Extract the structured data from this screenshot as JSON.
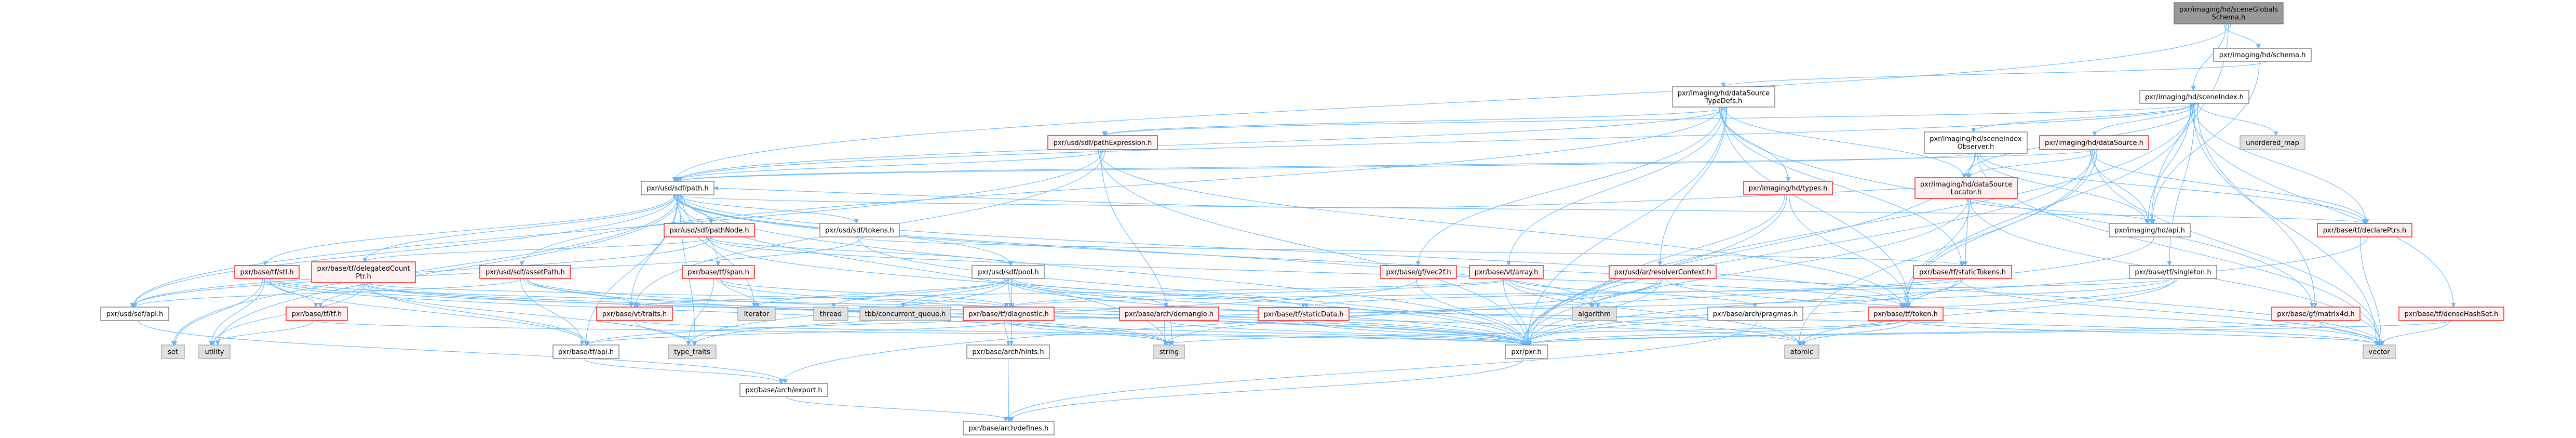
{
  "colors": {
    "edge": "#63b8ff",
    "focus_fill": "#999999",
    "focus_border": "#666666",
    "normal_fill": "#ffffff",
    "normal_border": "#666666",
    "red_fill": "#fff0f0",
    "red_border": "#ff0000",
    "external_fill": "#e0e0e0",
    "external_border": "#999999"
  },
  "nodes": [
    {
      "id": "sceneGlobalsSchema",
      "lines": [
        "pxr/imaging/hd/sceneGlobals",
        "Schema.h"
      ],
      "style": "focus"
    },
    {
      "id": "schema",
      "lines": [
        "pxr/imaging/hd/schema.h"
      ],
      "style": "normal"
    },
    {
      "id": "sceneIndex",
      "lines": [
        "pxr/imaging/hd/sceneIndex.h"
      ],
      "style": "normal"
    },
    {
      "id": "dstd",
      "lines": [
        "pxr/imaging/hd/dataSource",
        "TypeDefs.h"
      ],
      "style": "normal"
    },
    {
      "id": "pathExpr",
      "lines": [
        "pxr/usd/sdf/pathExpression.h"
      ],
      "style": "red"
    },
    {
      "id": "sceneIndexObserver",
      "lines": [
        "pxr/imaging/hd/sceneIndex",
        "Observer.h"
      ],
      "style": "normal"
    },
    {
      "id": "dataSource",
      "lines": [
        "pxr/imaging/hd/dataSource.h"
      ],
      "style": "red"
    },
    {
      "id": "unordered_map",
      "lines": [
        "unordered_map"
      ],
      "style": "external"
    },
    {
      "id": "path",
      "lines": [
        "pxr/usd/sdf/path.h"
      ],
      "style": "normal"
    },
    {
      "id": "types",
      "lines": [
        "pxr/imaging/hd/types.h"
      ],
      "style": "red"
    },
    {
      "id": "dsLocator",
      "lines": [
        "pxr/imaging/hd/dataSource",
        "Locator.h"
      ],
      "style": "red"
    },
    {
      "id": "pathNode",
      "lines": [
        "pxr/usd/sdf/pathNode.h"
      ],
      "style": "red"
    },
    {
      "id": "tokens",
      "lines": [
        "pxr/usd/sdf/tokens.h"
      ],
      "style": "normal"
    },
    {
      "id": "hdApi",
      "lines": [
        "pxr/imaging/hd/api.h"
      ],
      "style": "normal"
    },
    {
      "id": "declarePtrs",
      "lines": [
        "pxr/base/tf/declarePtrs.h"
      ],
      "style": "red"
    },
    {
      "id": "stl",
      "lines": [
        "pxr/base/tf/stl.h"
      ],
      "style": "red"
    },
    {
      "id": "delegated",
      "lines": [
        "pxr/base/tf/delegatedCount",
        "Ptr.h"
      ],
      "style": "red"
    },
    {
      "id": "assetPath",
      "lines": [
        "pxr/usd/sdf/assetPath.h"
      ],
      "style": "red"
    },
    {
      "id": "span",
      "lines": [
        "pxr/base/tf/span.h"
      ],
      "style": "red"
    },
    {
      "id": "pool",
      "lines": [
        "pxr/usd/sdf/pool.h"
      ],
      "style": "normal"
    },
    {
      "id": "vec2f",
      "lines": [
        "pxr/base/gf/vec2f.h"
      ],
      "style": "red"
    },
    {
      "id": "array",
      "lines": [
        "pxr/base/vt/array.h"
      ],
      "style": "red"
    },
    {
      "id": "resolverContext",
      "lines": [
        "pxr/usd/ar/resolverContext.h"
      ],
      "style": "red"
    },
    {
      "id": "staticTokens",
      "lines": [
        "pxr/base/tf/staticTokens.h"
      ],
      "style": "red"
    },
    {
      "id": "singleton",
      "lines": [
        "pxr/base/tf/singleton.h"
      ],
      "style": "normal"
    },
    {
      "id": "sdfApi",
      "lines": [
        "pxr/usd/sdf/api.h"
      ],
      "style": "normal"
    },
    {
      "id": "tf",
      "lines": [
        "pxr/base/tf/tf.h"
      ],
      "style": "red"
    },
    {
      "id": "traits",
      "lines": [
        "pxr/base/vt/traits.h"
      ],
      "style": "red"
    },
    {
      "id": "iterator",
      "lines": [
        "iterator"
      ],
      "style": "external"
    },
    {
      "id": "thread",
      "lines": [
        "thread"
      ],
      "style": "external"
    },
    {
      "id": "tbb",
      "lines": [
        "tbb/concurrent_queue.h"
      ],
      "style": "external"
    },
    {
      "id": "diagnostic",
      "lines": [
        "pxr/base/tf/diagnostic.h"
      ],
      "style": "red"
    },
    {
      "id": "demangle",
      "lines": [
        "pxr/base/arch/demangle.h"
      ],
      "style": "red"
    },
    {
      "id": "staticData",
      "lines": [
        "pxr/base/tf/staticData.h"
      ],
      "style": "red"
    },
    {
      "id": "algorithm",
      "lines": [
        "algorithm"
      ],
      "style": "external"
    },
    {
      "id": "pragmas",
      "lines": [
        "pxr/base/arch/pragmas.h"
      ],
      "style": "normal"
    },
    {
      "id": "token",
      "lines": [
        "pxr/base/tf/token.h"
      ],
      "style": "red"
    },
    {
      "id": "matrix4d",
      "lines": [
        "pxr/base/gf/matrix4d.h"
      ],
      "style": "red"
    },
    {
      "id": "denseHashSet",
      "lines": [
        "pxr/base/tf/denseHashSet.h"
      ],
      "style": "red"
    },
    {
      "id": "set",
      "lines": [
        "set"
      ],
      "style": "external"
    },
    {
      "id": "utility",
      "lines": [
        "utility"
      ],
      "style": "external"
    },
    {
      "id": "tfApi",
      "lines": [
        "pxr/base/tf/api.h"
      ],
      "style": "normal"
    },
    {
      "id": "type_traits",
      "lines": [
        "type_traits"
      ],
      "style": "external"
    },
    {
      "id": "hints",
      "lines": [
        "pxr/base/arch/hints.h"
      ],
      "style": "normal"
    },
    {
      "id": "string",
      "lines": [
        "string"
      ],
      "style": "external"
    },
    {
      "id": "pxr",
      "lines": [
        "pxr/pxr.h"
      ],
      "style": "normal"
    },
    {
      "id": "atomic",
      "lines": [
        "atomic"
      ],
      "style": "external"
    },
    {
      "id": "vector",
      "lines": [
        "vector"
      ],
      "style": "external"
    },
    {
      "id": "export",
      "lines": [
        "pxr/base/arch/export.h"
      ],
      "style": "normal"
    },
    {
      "id": "defines",
      "lines": [
        "pxr/base/arch/defines.h"
      ],
      "style": "normal"
    }
  ],
  "edges": [
    [
      "sceneGlobalsSchema",
      "schema"
    ],
    [
      "sceneGlobalsSchema",
      "sceneIndex"
    ],
    [
      "sceneGlobalsSchema",
      "hdApi"
    ],
    [
      "sceneGlobalsSchema",
      "path"
    ],
    [
      "schema",
      "dstd"
    ],
    [
      "schema",
      "hdApi"
    ],
    [
      "sceneIndex",
      "sceneIndexObserver"
    ],
    [
      "sceneIndex",
      "dataSource"
    ],
    [
      "sceneIndex",
      "unordered_map"
    ],
    [
      "sceneIndex",
      "hdApi"
    ],
    [
      "sceneIndex",
      "declarePtrs"
    ],
    [
      "sceneIndex",
      "singleton"
    ],
    [
      "sceneIndex",
      "matrix4d"
    ],
    [
      "sceneIndex",
      "denseHashSet"
    ],
    [
      "sceneIndex",
      "vector"
    ],
    [
      "sceneIndex",
      "path"
    ],
    [
      "sceneIndex",
      "pathExpr"
    ],
    [
      "sceneIndex",
      "dsLocator"
    ],
    [
      "sceneIndex",
      "token"
    ],
    [
      "sceneIndex",
      "pxr"
    ],
    [
      "dstd",
      "path"
    ],
    [
      "dstd",
      "pathExpr"
    ],
    [
      "dstd",
      "assetPath"
    ],
    [
      "dstd",
      "vec2f"
    ],
    [
      "dstd",
      "array"
    ],
    [
      "dstd",
      "resolverContext"
    ],
    [
      "dstd",
      "types"
    ],
    [
      "dstd",
      "token"
    ],
    [
      "dstd",
      "dsLocator"
    ],
    [
      "dstd",
      "pxr"
    ],
    [
      "dstd",
      "matrix4d"
    ],
    [
      "dstd",
      "staticTokens"
    ],
    [
      "sceneIndexObserver",
      "dsLocator"
    ],
    [
      "sceneIndexObserver",
      "hdApi"
    ],
    [
      "sceneIndexObserver",
      "declarePtrs"
    ],
    [
      "sceneIndexObserver",
      "path"
    ],
    [
      "sceneIndexObserver",
      "pxr"
    ],
    [
      "sceneIndexObserver",
      "vector"
    ],
    [
      "dataSource",
      "dsLocator"
    ],
    [
      "dataSource",
      "hdApi"
    ],
    [
      "dataSource",
      "vector"
    ],
    [
      "dataSource",
      "pxr"
    ],
    [
      "dataSource",
      "token"
    ],
    [
      "dataSource",
      "declarePtrs"
    ],
    [
      "dataSource",
      "atomic"
    ],
    [
      "dataSource",
      "path"
    ],
    [
      "dsLocator",
      "staticTokens"
    ],
    [
      "dsLocator",
      "token"
    ],
    [
      "dsLocator",
      "path"
    ],
    [
      "dsLocator",
      "hdApi"
    ],
    [
      "dsLocator",
      "pxr"
    ],
    [
      "dsLocator",
      "vector"
    ],
    [
      "types",
      "algorithm"
    ],
    [
      "types",
      "pxr"
    ],
    [
      "types",
      "token"
    ],
    [
      "pathExpr",
      "path"
    ],
    [
      "pathExpr",
      "pxr"
    ],
    [
      "pathExpr",
      "string"
    ],
    [
      "pathExpr",
      "sdfApi"
    ],
    [
      "pathExpr",
      "traits"
    ],
    [
      "pathExpr",
      "token"
    ],
    [
      "path",
      "sdfApi"
    ],
    [
      "path",
      "pathNode"
    ],
    [
      "path",
      "tokens"
    ],
    [
      "path",
      "span"
    ],
    [
      "path",
      "pool"
    ],
    [
      "path",
      "iterator"
    ],
    [
      "path",
      "set"
    ],
    [
      "path",
      "utility"
    ],
    [
      "path",
      "stl"
    ],
    [
      "path",
      "delegated"
    ],
    [
      "path",
      "traits"
    ],
    [
      "path",
      "token"
    ],
    [
      "path",
      "vector"
    ],
    [
      "path",
      "string"
    ],
    [
      "path",
      "tfApi"
    ],
    [
      "path",
      "type_traits"
    ],
    [
      "path",
      "pxr"
    ],
    [
      "path",
      "declarePtrs"
    ],
    [
      "path",
      "algorithm"
    ],
    [
      "pathNode",
      "sdfApi"
    ],
    [
      "pathNode",
      "delegated"
    ],
    [
      "pathNode",
      "token"
    ],
    [
      "pathNode",
      "pxr"
    ],
    [
      "pathNode",
      "pool"
    ],
    [
      "tokens",
      "sdfApi"
    ],
    [
      "tokens",
      "staticTokens"
    ],
    [
      "tokens",
      "pxr"
    ],
    [
      "span",
      "diagnostic"
    ],
    [
      "span",
      "iterator"
    ],
    [
      "span",
      "type_traits"
    ],
    [
      "span",
      "pxr"
    ],
    [
      "pool",
      "diagnostic"
    ],
    [
      "pool",
      "demangle"
    ],
    [
      "pool",
      "staticData"
    ],
    [
      "pool",
      "thread"
    ],
    [
      "pool",
      "tbb"
    ],
    [
      "pool",
      "iterator"
    ],
    [
      "pool",
      "hints"
    ],
    [
      "pool",
      "pxr"
    ],
    [
      "pool",
      "atomic"
    ],
    [
      "pool",
      "type_traits"
    ],
    [
      "stl",
      "tf"
    ],
    [
      "stl",
      "set"
    ],
    [
      "stl",
      "utility"
    ],
    [
      "stl",
      "tfApi"
    ],
    [
      "stl",
      "pxr"
    ],
    [
      "stl",
      "vector"
    ],
    [
      "stl",
      "string"
    ],
    [
      "delegated",
      "tf"
    ],
    [
      "delegated",
      "utility"
    ],
    [
      "delegated",
      "tfApi"
    ],
    [
      "delegated",
      "type_traits"
    ],
    [
      "delegated",
      "pxr"
    ],
    [
      "delegated",
      "atomic"
    ],
    [
      "delegated",
      "diagnostic"
    ],
    [
      "assetPath",
      "sdfApi"
    ],
    [
      "assetPath",
      "traits"
    ],
    [
      "assetPath",
      "pxr"
    ],
    [
      "assetPath",
      "string"
    ],
    [
      "assetPath",
      "tfApi"
    ],
    [
      "vec2f",
      "pxr"
    ],
    [
      "vec2f",
      "type_traits"
    ],
    [
      "array",
      "algorithm"
    ],
    [
      "array",
      "pragmas"
    ],
    [
      "array",
      "pxr"
    ],
    [
      "array",
      "atomic"
    ],
    [
      "array",
      "traits"
    ],
    [
      "array",
      "diagnostic"
    ],
    [
      "resolverContext",
      "algorithm"
    ],
    [
      "resolverContext",
      "pxr"
    ],
    [
      "resolverContext",
      "string"
    ],
    [
      "resolverContext",
      "vector"
    ],
    [
      "staticTokens",
      "token"
    ],
    [
      "staticTokens",
      "vector"
    ],
    [
      "staticTokens",
      "pxr"
    ],
    [
      "staticTokens",
      "staticData"
    ],
    [
      "singleton",
      "pxr"
    ],
    [
      "singleton",
      "tfApi"
    ],
    [
      "singleton",
      "diagnostic"
    ],
    [
      "singleton",
      "atomic"
    ],
    [
      "sdfApi",
      "export"
    ],
    [
      "tf",
      "utility"
    ],
    [
      "tf",
      "pxr"
    ],
    [
      "traits",
      "type_traits"
    ],
    [
      "traits",
      "pxr"
    ],
    [
      "diagnostic",
      "hints"
    ],
    [
      "diagnostic",
      "string"
    ],
    [
      "diagnostic",
      "pxr"
    ],
    [
      "diagnostic",
      "tfApi"
    ],
    [
      "demangle",
      "string"
    ],
    [
      "demangle",
      "pxr"
    ],
    [
      "staticData",
      "pxr"
    ],
    [
      "pragmas",
      "defines"
    ],
    [
      "token",
      "atomic"
    ],
    [
      "token",
      "pxr"
    ],
    [
      "token",
      "string"
    ],
    [
      "token",
      "vector"
    ],
    [
      "matrix4d",
      "vector"
    ],
    [
      "matrix4d",
      "pxr"
    ],
    [
      "denseHashSet",
      "vector"
    ],
    [
      "denseHashSet",
      "pxr"
    ],
    [
      "declarePtrs",
      "pxr"
    ],
    [
      "declarePtrs",
      "vector"
    ],
    [
      "tfApi",
      "export"
    ],
    [
      "hints",
      "defines"
    ],
    [
      "export",
      "defines"
    ],
    [
      "hdApi",
      "export"
    ],
    [
      "pxr",
      "defines"
    ]
  ]
}
